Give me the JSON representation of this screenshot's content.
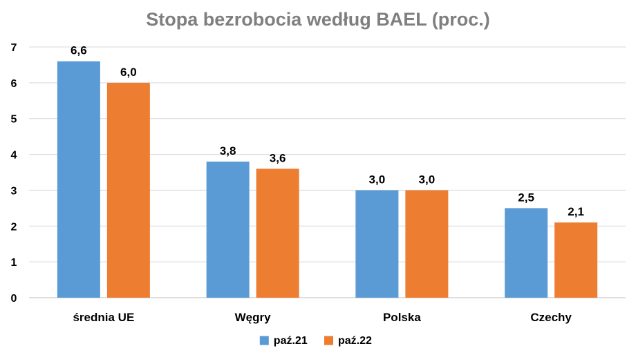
{
  "chart_data": {
    "type": "bar",
    "title": "Stopa bezrobocia według BAEL (proc.)",
    "xlabel": "",
    "ylabel": "",
    "categories": [
      "średnia UE",
      "Węgry",
      "Polska",
      "Czechy"
    ],
    "series": [
      {
        "name": "paź.21",
        "color": "#5b9bd5",
        "values": [
          6.6,
          3.8,
          3.0,
          2.5
        ]
      },
      {
        "name": "paź.22",
        "color": "#ed7d31",
        "values": [
          6.0,
          3.6,
          3.0,
          2.1
        ]
      }
    ],
    "ylim": [
      0,
      7
    ],
    "yticks": [
      0,
      1,
      2,
      3,
      4,
      5,
      6,
      7
    ],
    "grid": true,
    "legend": "bottom",
    "data_labels": true,
    "decimal_separator": ","
  }
}
